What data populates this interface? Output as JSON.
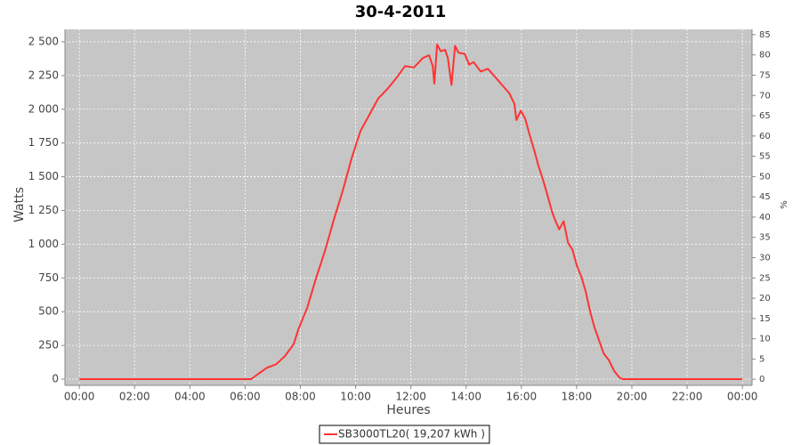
{
  "chart_data": {
    "type": "line",
    "title": "30-4-2011",
    "x_label": "Heures",
    "y_label": "Watts",
    "y2_label": "%",
    "x": [
      0,
      6.22,
      6.48,
      6.8,
      7.12,
      7.44,
      7.76,
      7.93,
      8.25,
      8.57,
      8.89,
      9.21,
      9.54,
      9.86,
      10.18,
      10.5,
      10.82,
      11.15,
      11.47,
      11.79,
      12.11,
      12.44,
      12.66,
      12.79,
      12.85,
      12.95,
      13.08,
      13.24,
      13.34,
      13.47,
      13.6,
      13.72,
      13.95,
      14.11,
      14.27,
      14.53,
      14.79,
      15.05,
      15.3,
      15.56,
      15.75,
      15.82,
      15.98,
      16.14,
      16.3,
      16.46,
      16.62,
      16.78,
      16.95,
      17.11,
      17.24,
      17.37,
      17.53,
      17.69,
      17.85,
      18.01,
      18.17,
      18.33,
      18.49,
      18.65,
      18.81,
      18.98,
      19.17,
      19.36,
      19.56,
      19.68,
      24
    ],
    "series": [
      {
        "name": "SB3000TL20( 19,207 kWh )",
        "color": "#ff3333",
        "values": [
          0,
          0,
          40,
          85,
          110,
          170,
          260,
          370,
          530,
          750,
          950,
          1180,
          1400,
          1640,
          1840,
          1960,
          2080,
          2150,
          2230,
          2320,
          2310,
          2380,
          2400,
          2320,
          2190,
          2480,
          2430,
          2440,
          2380,
          2180,
          2470,
          2420,
          2410,
          2330,
          2350,
          2280,
          2300,
          2240,
          2180,
          2120,
          2040,
          1920,
          1990,
          1930,
          1810,
          1700,
          1580,
          1480,
          1360,
          1240,
          1170,
          1110,
          1170,
          1010,
          960,
          840,
          760,
          650,
          500,
          380,
          290,
          190,
          140,
          60,
          10,
          0,
          0
        ]
      }
    ],
    "xlim": [
      -0.52,
      24.35
    ],
    "xticks": [
      {
        "value": 0,
        "label": "00:00"
      },
      {
        "value": 2,
        "label": "02:00"
      },
      {
        "value": 4,
        "label": "04:00"
      },
      {
        "value": 6,
        "label": "06:00"
      },
      {
        "value": 8,
        "label": "08:00"
      },
      {
        "value": 10,
        "label": "10:00"
      },
      {
        "value": 12,
        "label": "12:00"
      },
      {
        "value": 14,
        "label": "14:00"
      },
      {
        "value": 16,
        "label": "16:00"
      },
      {
        "value": 18,
        "label": "18:00"
      },
      {
        "value": 20,
        "label": "20:00"
      },
      {
        "value": 22,
        "label": "22:00"
      },
      {
        "value": 24,
        "label": "00:00"
      }
    ],
    "ylim": [
      -46,
      2592
    ],
    "yticks": [
      0,
      250,
      500,
      750,
      {
        "value": 1000,
        "label": "1 000"
      },
      {
        "value": 1250,
        "label": "1 250"
      },
      {
        "value": 1500,
        "label": "1 500"
      },
      {
        "value": 1750,
        "label": "1 750"
      },
      {
        "value": 2000,
        "label": "2 000"
      },
      {
        "value": 2250,
        "label": "2 250"
      },
      {
        "value": 2500,
        "label": "2 500"
      }
    ],
    "y2lim": [
      -1.5,
      86.3
    ],
    "y2ticks": [
      0,
      5,
      10,
      15,
      20,
      25,
      30,
      35,
      40,
      45,
      50,
      55,
      60,
      65,
      70,
      75,
      80,
      85
    ],
    "grid": true,
    "legend": "bottom"
  }
}
